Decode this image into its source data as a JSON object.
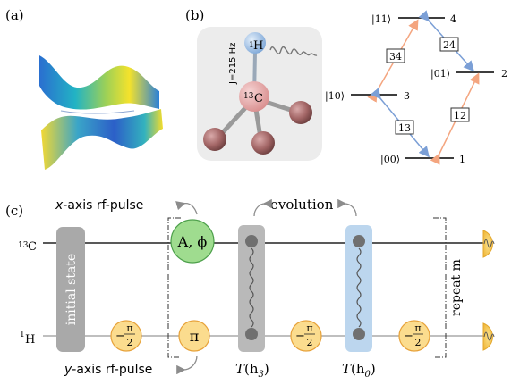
{
  "panels": {
    "a": "(a)",
    "b": "(b)",
    "c": "(c)"
  },
  "molecule": {
    "h_label": "1H",
    "h_sup": "1",
    "h_base": "H",
    "c_sup": "13",
    "c_base": "C",
    "coupling": "J=215 Hz"
  },
  "levels": [
    {
      "ket": "|11⟩",
      "num": "4"
    },
    {
      "ket": "|01⟩",
      "num": "2"
    },
    {
      "ket": "|10⟩",
      "num": "3"
    },
    {
      "ket": "|00⟩",
      "num": "1"
    }
  ],
  "transitions": [
    "34",
    "24",
    "13",
    "12"
  ],
  "circuit": {
    "c_line_sup": "13",
    "c_line_base": "C",
    "h_line_sup": "1",
    "h_line_base": "H",
    "initial_state": "initial state",
    "x_pulse": "x-axis rf-pulse",
    "x_pulse_axis": "x",
    "x_pulse_rest": "-axis rf-pulse",
    "y_pulse_axis": "y",
    "y_pulse_rest": "-axis rf-pulse",
    "evolution": "evolution",
    "a_phi": "A, ϕ",
    "pi": "π",
    "minus": "−",
    "pi_num": "π",
    "two": "2",
    "t_h3_T": "T",
    "t_h3_arg": "(h",
    "t_h3_sub": "3",
    "t_h0_sub": "0",
    "close": ")",
    "repeat": "repeat m"
  },
  "colors": {
    "green_gate": "#9fdc8f",
    "orange_gate": "#fbdc8e",
    "gray_block": "#a9a9a9",
    "blue_block": "#bcd6ee",
    "orange_arrow": "#f4a57f",
    "blue_arrow": "#7b9fd6"
  }
}
